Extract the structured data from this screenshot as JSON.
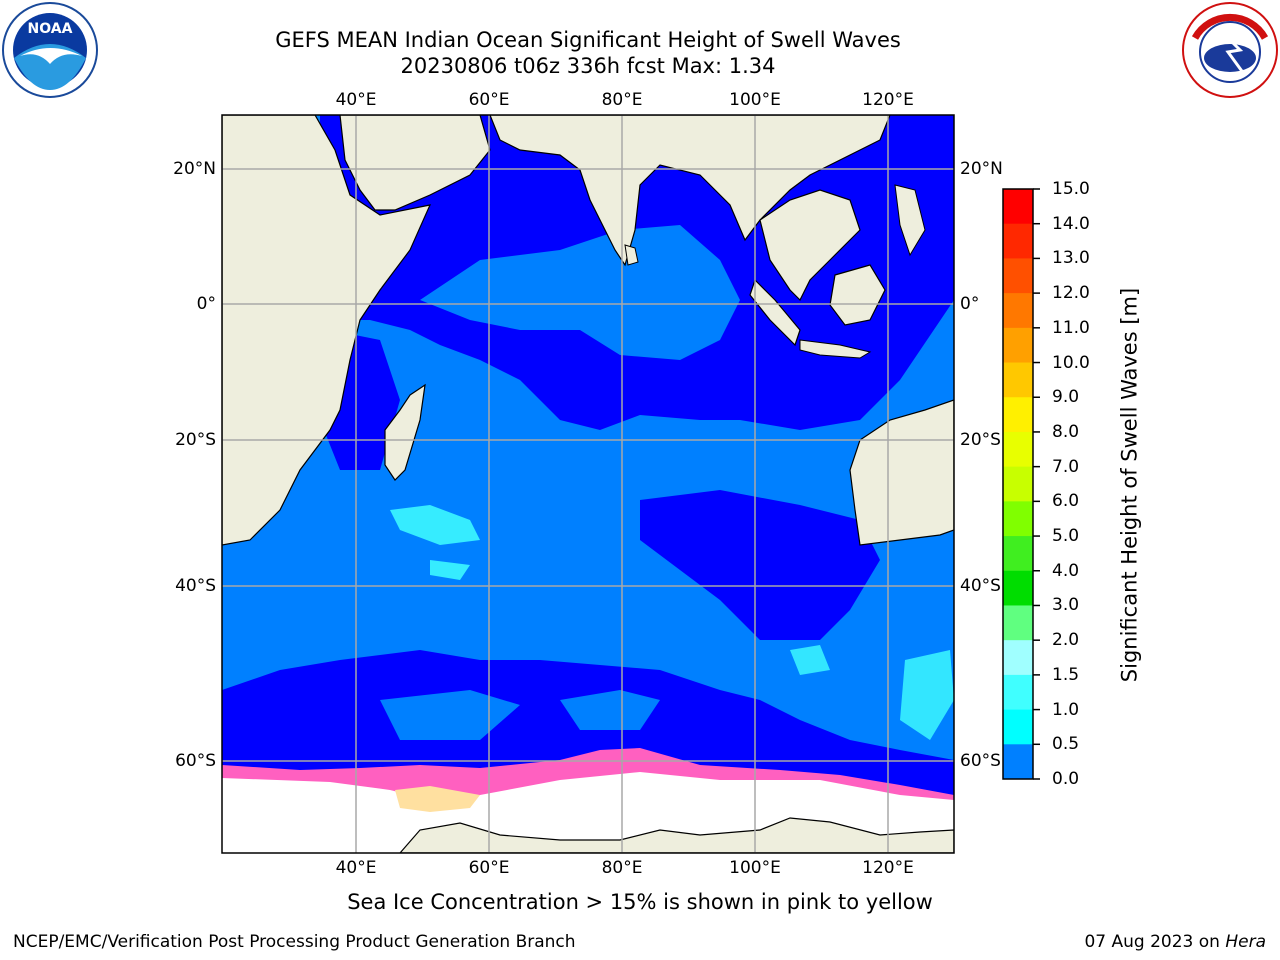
{
  "header": {
    "title_line1": "GEFS MEAN Indian Ocean Significant Height of Swell Waves",
    "title_line2": "20230806 t06z 336h fcst   Max: 1.34"
  },
  "logos": {
    "left": "NOAA",
    "right": "NATIONAL WEATHER SERVICE"
  },
  "map": {
    "lon_labels": [
      "40°E",
      "60°E",
      "80°E",
      "100°E",
      "120°E"
    ],
    "lat_labels": [
      "20°N",
      "0°",
      "20°S",
      "40°S",
      "60°S"
    ],
    "colors": {
      "land": "#eeeedd",
      "ocean_low": "#0000ff",
      "ocean_mid": "#0080ff",
      "ice": "#ffffff",
      "grid": "#a8a8a8"
    }
  },
  "colorbar": {
    "title": "Significant Height of Swell Waves [m]",
    "ticks": [
      "15.0",
      "14.0",
      "13.0",
      "12.0",
      "11.0",
      "10.0",
      "9.0",
      "8.0",
      "7.0",
      "6.0",
      "5.0",
      "4.0",
      "3.0",
      "2.0",
      "1.5",
      "1.0",
      "0.5",
      "0.0"
    ],
    "colors": [
      "#ff0000",
      "#ff2800",
      "#ff5000",
      "#ff7800",
      "#ffa000",
      "#ffc800",
      "#fff000",
      "#e8ff00",
      "#c8ff00",
      "#80ff00",
      "#40ee20",
      "#00dd00",
      "#60ff80",
      "#a0ffff",
      "#40ffff",
      "#00ffff",
      "#0080ff",
      "#0000ff"
    ]
  },
  "notes": {
    "ice": "Sea Ice Concentration > 15% is shown in pink to yellow"
  },
  "footer": {
    "left": "NCEP/EMC/Verification Post Processing Product Generation Branch",
    "date": "07 Aug 2023 on",
    "host": "Hera"
  }
}
